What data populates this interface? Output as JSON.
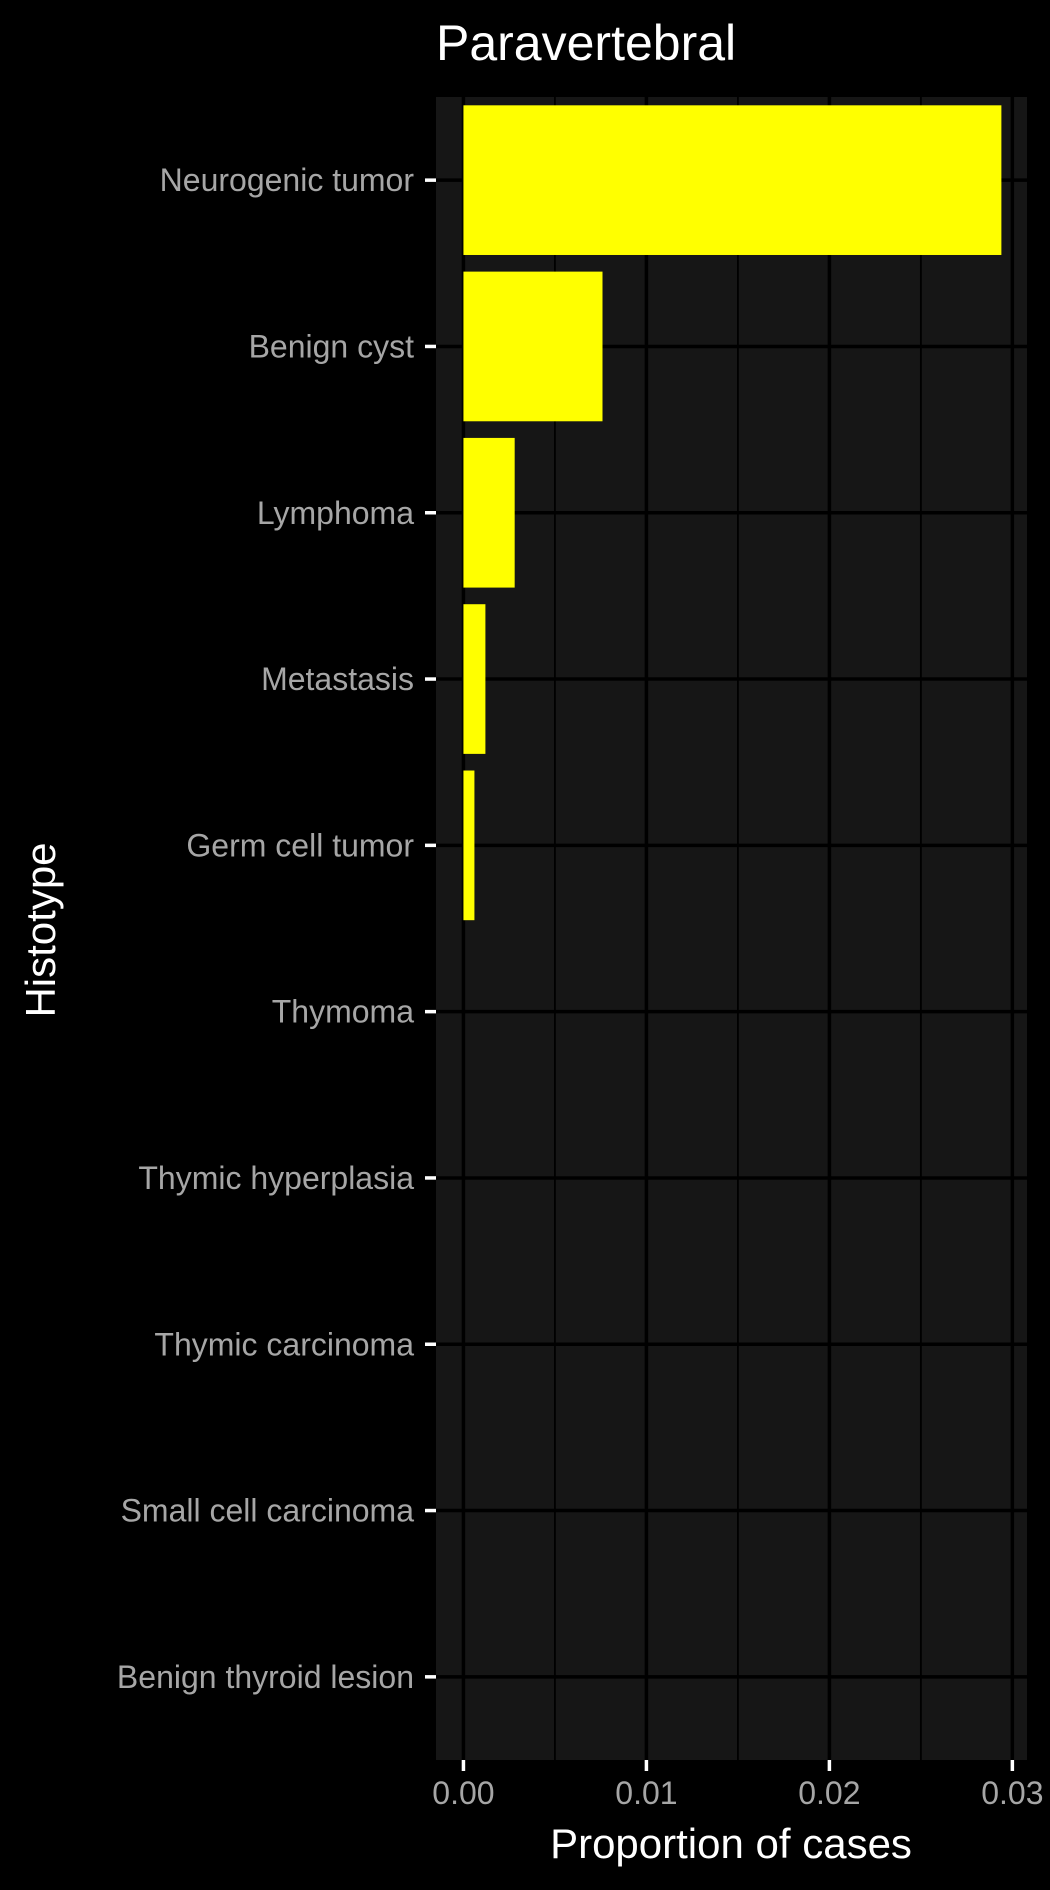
{
  "chart_data": {
    "type": "bar",
    "orientation": "horizontal",
    "title": "Paravertebral",
    "xlabel": "Proportion of cases",
    "ylabel": "Histotype",
    "categories": [
      "Neurogenic tumor",
      "Benign cyst",
      "Lymphoma",
      "Metastasis",
      "Germ cell tumor",
      "Thymoma",
      "Thymic hyperplasia",
      "Thymic carcinoma",
      "Small cell carcinoma",
      "Benign thyroid lesion"
    ],
    "values": [
      0.0294,
      0.0076,
      0.0028,
      0.0012,
      0.0006,
      0,
      0,
      0,
      0,
      0
    ],
    "xlim": [
      -0.0015,
      0.0308
    ],
    "xticks": [
      0,
      0.01,
      0.02,
      0.03
    ],
    "xtick_labels": [
      "0.00",
      "0.01",
      "0.02",
      "0.03"
    ],
    "grid": true,
    "colors": {
      "background": "#000000",
      "panel": "#161616",
      "bar": "#ffff00"
    }
  }
}
